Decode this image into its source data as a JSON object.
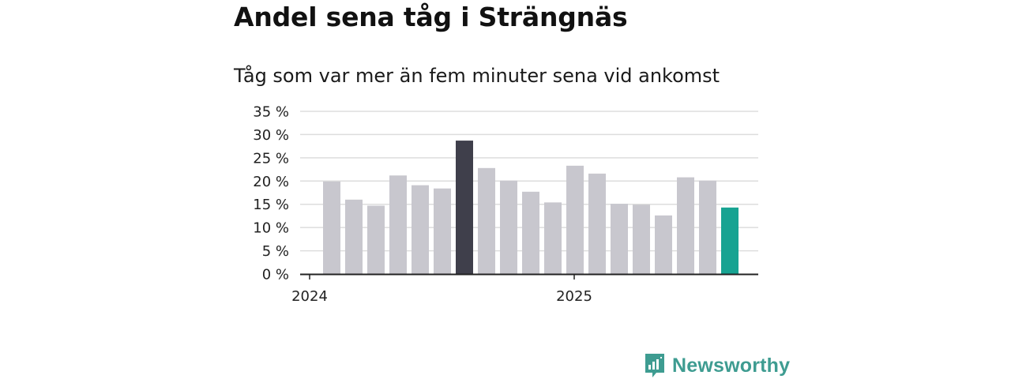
{
  "chart_data": {
    "type": "bar",
    "title": "Andel sena tåg i Strängnäs",
    "subtitle": "Tåg som var mer än fem minuter sena vid ankomst",
    "ylim": [
      0,
      35
    ],
    "y_ticks": [
      "0 %",
      "5 %",
      "10 %",
      "15 %",
      "20 %",
      "25 %",
      "30 %",
      "35 %"
    ],
    "x_ticks": [
      {
        "label": "2024",
        "index": 0
      },
      {
        "label": "2025",
        "index": 12
      }
    ],
    "values": [
      19.9,
      16.0,
      14.7,
      21.2,
      19.1,
      18.4,
      28.7,
      22.8,
      20.1,
      17.7,
      15.4,
      23.3,
      21.6,
      15.1,
      14.9,
      12.6,
      20.8,
      20.1,
      14.3
    ],
    "highlight": {
      "max_index": 6,
      "latest_index": 18
    },
    "grid": true,
    "colors": {
      "bar": "#c8c7ce",
      "max": "#3f3f4b",
      "latest": "#17a392",
      "grid": "#dddddd",
      "axis": "#222222"
    }
  },
  "brand": {
    "name": "Newsworthy",
    "color": "#3e9c91"
  }
}
